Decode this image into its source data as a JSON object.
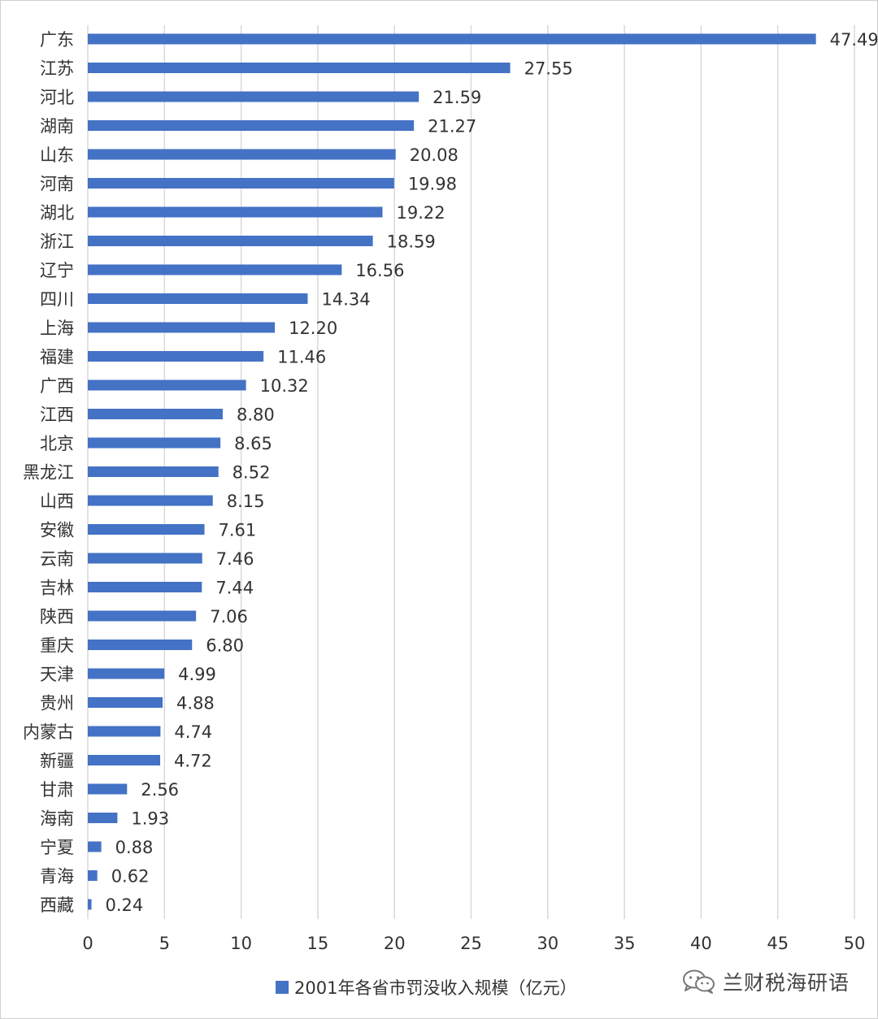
{
  "chart_data": {
    "type": "bar",
    "orientation": "horizontal",
    "categories": [
      "广东",
      "江苏",
      "河北",
      "湖南",
      "山东",
      "河南",
      "湖北",
      "浙江",
      "辽宁",
      "四川",
      "上海",
      "福建",
      "广西",
      "江西",
      "北京",
      "黑龙江",
      "山西",
      "安徽",
      "云南",
      "吉林",
      "陕西",
      "重庆",
      "天津",
      "贵州",
      "内蒙古",
      "新疆",
      "甘肃",
      "海南",
      "宁夏",
      "青海",
      "西藏"
    ],
    "series": [
      {
        "name": "2001年各省市罚没收入规模（亿元）",
        "values": [
          47.49,
          27.55,
          21.59,
          21.27,
          20.08,
          19.98,
          19.22,
          18.59,
          16.56,
          14.34,
          12.2,
          11.46,
          10.32,
          8.8,
          8.65,
          8.52,
          8.15,
          7.61,
          7.46,
          7.44,
          7.06,
          6.8,
          4.99,
          4.88,
          4.74,
          4.72,
          2.56,
          1.93,
          0.88,
          0.62,
          0.24
        ],
        "labels": [
          "47.49",
          "27.55",
          "21.59",
          "21.27",
          "20.08",
          "19.98",
          "19.22",
          "18.59",
          "16.56",
          "14.34",
          "12.20",
          "11.46",
          "10.32",
          "8.80",
          "8.65",
          "8.52",
          "8.15",
          "7.61",
          "7.46",
          "7.44",
          "7.06",
          "6.80",
          "4.99",
          "4.88",
          "4.74",
          "4.72",
          "2.56",
          "1.93",
          "0.88",
          "0.62",
          "0.24"
        ]
      }
    ],
    "highlight": {
      "category": "甘肃",
      "label_color": "#ff0000"
    },
    "xlim": [
      0,
      50
    ],
    "xticks": [
      "0",
      "5",
      "10",
      "15",
      "20",
      "25",
      "30",
      "35",
      "40",
      "45",
      "50"
    ],
    "grid": true,
    "legend": "bottom",
    "bar_color": "#4472c4",
    "grid_color": "#d9d9d9",
    "text_color": "#333333"
  },
  "watermark": {
    "icon": "wechat-icon",
    "text": "兰财税海研语"
  }
}
